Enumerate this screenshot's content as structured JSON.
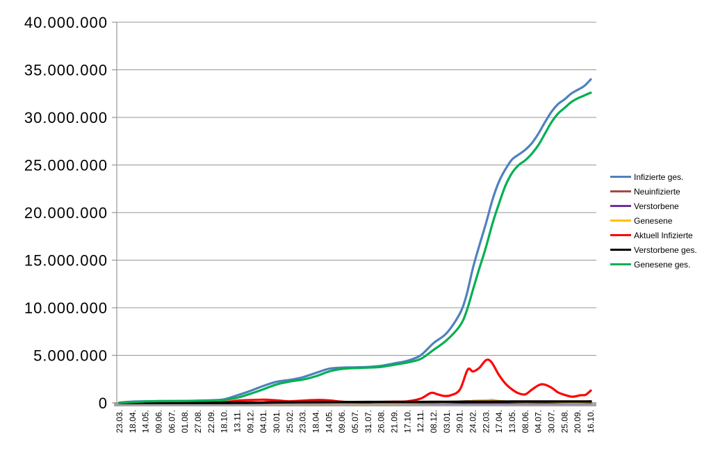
{
  "chart_data": {
    "type": "line",
    "title": "",
    "legend_position": "right",
    "grid": true,
    "values_unit": "millions",
    "y_axis": {
      "min": 0,
      "max": 40000000,
      "step": 5000000,
      "tick_labels_top_to_bottom": [
        "40.000.000",
        "35.000.000",
        "30.000.000",
        "25.000.000",
        "20.000.000",
        "15.000.000",
        "10.000.000",
        "5.000.000",
        "0"
      ]
    },
    "x_axis": {
      "label_rotation_degrees": -90,
      "categories": [
        "23.03.",
        "18.04.",
        "14.05.",
        "09.06.",
        "06.07.",
        "01.08.",
        "27.08.",
        "22.09.",
        "18.10.",
        "13.11.",
        "09.12.",
        "04.01.",
        "30.01.",
        "25.02.",
        "23.03.",
        "18.04.",
        "14.05.",
        "09.06.",
        "05.07.",
        "31.07.",
        "26.08.",
        "21.09.",
        "17.10.",
        "12.11.",
        "08.12.",
        "03.01.",
        "29.01.",
        "24.02.",
        "22.03.",
        "17.04.",
        "13.05.",
        "08.06.",
        "04.07.",
        "30.07.",
        "25.08.",
        "20.09.",
        "16.10."
      ]
    },
    "series": [
      {
        "name": "Infizierte ges.",
        "color": "#4F81BD",
        "points_index_value_millions": [
          [
            0,
            0.03
          ],
          [
            1,
            0.14
          ],
          [
            2,
            0.17
          ],
          [
            3,
            0.19
          ],
          [
            4,
            0.2
          ],
          [
            5,
            0.21
          ],
          [
            6,
            0.24
          ],
          [
            7,
            0.28
          ],
          [
            8,
            0.38
          ],
          [
            9,
            0.8
          ],
          [
            10,
            1.27
          ],
          [
            11,
            1.79
          ],
          [
            12,
            2.22
          ],
          [
            13,
            2.42
          ],
          [
            14,
            2.7
          ],
          [
            15,
            3.15
          ],
          [
            16,
            3.59
          ],
          [
            17,
            3.71
          ],
          [
            18,
            3.74
          ],
          [
            19,
            3.78
          ],
          [
            20,
            3.9
          ],
          [
            21,
            4.15
          ],
          [
            22,
            4.43
          ],
          [
            23,
            5.0
          ],
          [
            24,
            6.3
          ],
          [
            25,
            7.35
          ],
          [
            26,
            9.4
          ],
          [
            26.5,
            11.3
          ],
          [
            27,
            14.2
          ],
          [
            27.5,
            16.6
          ],
          [
            28,
            18.9
          ],
          [
            28.5,
            21.4
          ],
          [
            29,
            23.3
          ],
          [
            29.5,
            24.6
          ],
          [
            30,
            25.6
          ],
          [
            30.5,
            26.1
          ],
          [
            31,
            26.6
          ],
          [
            31.5,
            27.3
          ],
          [
            32,
            28.3
          ],
          [
            32.5,
            29.5
          ],
          [
            33,
            30.6
          ],
          [
            33.5,
            31.4
          ],
          [
            34,
            31.9
          ],
          [
            34.5,
            32.5
          ],
          [
            35,
            32.9
          ],
          [
            35.5,
            33.3
          ],
          [
            36,
            34.0
          ]
        ]
      },
      {
        "name": "Neuinfizierte",
        "color": "#9E4B45",
        "points_index_value_millions": [
          [
            0,
            0.004
          ],
          [
            1,
            0.002
          ],
          [
            2,
            0.001
          ],
          [
            3,
            0.0005
          ],
          [
            7,
            0.002
          ],
          [
            9,
            0.019
          ],
          [
            10,
            0.022
          ],
          [
            11,
            0.018
          ],
          [
            12,
            0.012
          ],
          [
            13,
            0.009
          ],
          [
            14,
            0.016
          ],
          [
            15,
            0.02
          ],
          [
            16,
            0.012
          ],
          [
            17,
            0.005
          ],
          [
            18,
            0.001
          ],
          [
            19,
            0.002
          ],
          [
            20,
            0.008
          ],
          [
            21,
            0.01
          ],
          [
            22,
            0.015
          ],
          [
            23,
            0.04
          ],
          [
            24,
            0.045
          ],
          [
            25,
            0.04
          ],
          [
            26,
            0.13
          ],
          [
            27,
            0.2
          ],
          [
            28,
            0.25
          ],
          [
            28.5,
            0.29
          ],
          [
            29,
            0.18
          ],
          [
            30,
            0.09
          ],
          [
            31,
            0.07
          ],
          [
            32,
            0.11
          ],
          [
            32.5,
            0.12
          ],
          [
            33,
            0.09
          ],
          [
            34,
            0.04
          ],
          [
            35,
            0.045
          ],
          [
            36,
            0.095
          ]
        ]
      },
      {
        "name": "Verstorbene",
        "color": "#7030A0",
        "points_index_value_millions": [
          [
            0,
            0.0002
          ],
          [
            10,
            0.0008
          ],
          [
            12,
            0.0009
          ],
          [
            14,
            0.0003
          ],
          [
            22,
            0.0002
          ],
          [
            24,
            0.0004
          ],
          [
            28,
            0.0003
          ],
          [
            36,
            0.0002
          ]
        ]
      },
      {
        "name": "Genesene",
        "color": "#FFC000",
        "points_index_value_millions": [
          [
            0,
            0.002
          ],
          [
            1,
            0.004
          ],
          [
            9,
            0.015
          ],
          [
            10,
            0.02
          ],
          [
            11,
            0.02
          ],
          [
            12,
            0.014
          ],
          [
            14,
            0.015
          ],
          [
            15,
            0.018
          ],
          [
            16,
            0.015
          ],
          [
            17,
            0.007
          ],
          [
            18,
            0.002
          ],
          [
            20,
            0.006
          ],
          [
            22,
            0.012
          ],
          [
            23,
            0.03
          ],
          [
            24,
            0.045
          ],
          [
            25,
            0.042
          ],
          [
            26,
            0.1
          ],
          [
            27,
            0.18
          ],
          [
            28,
            0.23
          ],
          [
            28.5,
            0.27
          ],
          [
            29,
            0.2
          ],
          [
            30,
            0.11
          ],
          [
            31,
            0.075
          ],
          [
            32,
            0.1
          ],
          [
            33,
            0.095
          ],
          [
            34,
            0.05
          ],
          [
            35,
            0.045
          ],
          [
            36,
            0.08
          ]
        ]
      },
      {
        "name": "Aktuell Infizierte",
        "color": "#FF0000",
        "points_index_value_millions": [
          [
            0,
            0.025
          ],
          [
            0.5,
            0.06
          ],
          [
            1,
            0.05
          ],
          [
            2,
            0.02
          ],
          [
            3,
            0.01
          ],
          [
            4,
            0.008
          ],
          [
            5,
            0.01
          ],
          [
            6,
            0.018
          ],
          [
            7,
            0.03
          ],
          [
            8,
            0.07
          ],
          [
            9,
            0.24
          ],
          [
            10,
            0.3
          ],
          [
            11,
            0.34
          ],
          [
            12,
            0.27
          ],
          [
            13,
            0.17
          ],
          [
            14,
            0.24
          ],
          [
            15,
            0.31
          ],
          [
            16,
            0.26
          ],
          [
            17,
            0.13
          ],
          [
            18,
            0.07
          ],
          [
            19,
            0.05
          ],
          [
            20,
            0.1
          ],
          [
            21,
            0.13
          ],
          [
            22,
            0.17
          ],
          [
            23,
            0.45
          ],
          [
            23.8,
            1.05
          ],
          [
            24.3,
            0.9
          ],
          [
            24.8,
            0.73
          ],
          [
            25.3,
            0.8
          ],
          [
            26,
            1.4
          ],
          [
            26.6,
            3.5
          ],
          [
            27,
            3.3
          ],
          [
            27.5,
            3.7
          ],
          [
            28,
            4.5
          ],
          [
            28.4,
            4.3
          ],
          [
            29,
            2.9
          ],
          [
            29.5,
            2.0
          ],
          [
            30,
            1.4
          ],
          [
            30.5,
            1.0
          ],
          [
            31,
            0.9
          ],
          [
            31.5,
            1.4
          ],
          [
            32,
            1.85
          ],
          [
            32.4,
            1.95
          ],
          [
            33,
            1.6
          ],
          [
            33.5,
            1.1
          ],
          [
            34,
            0.85
          ],
          [
            34.6,
            0.65
          ],
          [
            35.2,
            0.8
          ],
          [
            35.6,
            0.85
          ],
          [
            36,
            1.3
          ]
        ]
      },
      {
        "name": "Verstorbene ges.",
        "color": "#000000",
        "points_index_value_millions": [
          [
            0,
            0.0
          ],
          [
            2,
            0.008
          ],
          [
            4,
            0.009
          ],
          [
            8,
            0.01
          ],
          [
            9,
            0.013
          ],
          [
            10,
            0.021
          ],
          [
            11,
            0.035
          ],
          [
            12,
            0.056
          ],
          [
            13,
            0.069
          ],
          [
            14,
            0.075
          ],
          [
            15,
            0.08
          ],
          [
            16,
            0.086
          ],
          [
            17,
            0.089
          ],
          [
            18,
            0.091
          ],
          [
            19,
            0.092
          ],
          [
            20,
            0.092
          ],
          [
            21,
            0.093
          ],
          [
            22,
            0.095
          ],
          [
            23,
            0.098
          ],
          [
            24,
            0.104
          ],
          [
            25,
            0.112
          ],
          [
            26,
            0.118
          ],
          [
            27,
            0.122
          ],
          [
            28,
            0.127
          ],
          [
            29,
            0.132
          ],
          [
            30,
            0.136
          ],
          [
            31,
            0.139
          ],
          [
            32,
            0.141
          ],
          [
            33,
            0.143
          ],
          [
            34,
            0.145
          ],
          [
            35,
            0.147
          ],
          [
            36,
            0.15
          ]
        ]
      },
      {
        "name": "Genesene ges.",
        "color": "#00B050",
        "points_index_value_millions": [
          [
            0,
            0.01
          ],
          [
            1,
            0.08
          ],
          [
            2,
            0.15
          ],
          [
            3,
            0.18
          ],
          [
            4,
            0.19
          ],
          [
            5,
            0.2
          ],
          [
            6,
            0.22
          ],
          [
            7,
            0.25
          ],
          [
            8,
            0.31
          ],
          [
            9,
            0.55
          ],
          [
            10,
            0.96
          ],
          [
            11,
            1.44
          ],
          [
            12,
            1.94
          ],
          [
            13,
            2.24
          ],
          [
            14,
            2.45
          ],
          [
            15,
            2.8
          ],
          [
            16,
            3.3
          ],
          [
            17,
            3.57
          ],
          [
            18,
            3.66
          ],
          [
            19,
            3.71
          ],
          [
            20,
            3.79
          ],
          [
            21,
            4.01
          ],
          [
            22,
            4.25
          ],
          [
            23,
            4.62
          ],
          [
            24,
            5.58
          ],
          [
            25,
            6.6
          ],
          [
            26,
            8.1
          ],
          [
            26.5,
            9.6
          ],
          [
            27,
            11.9
          ],
          [
            27.5,
            14.2
          ],
          [
            28,
            16.4
          ],
          [
            28.5,
            18.9
          ],
          [
            29,
            21.0
          ],
          [
            29.5,
            22.9
          ],
          [
            30,
            24.2
          ],
          [
            30.5,
            25.0
          ],
          [
            31,
            25.5
          ],
          [
            31.5,
            26.2
          ],
          [
            32,
            27.1
          ],
          [
            32.5,
            28.3
          ],
          [
            33,
            29.5
          ],
          [
            33.5,
            30.4
          ],
          [
            34,
            31.0
          ],
          [
            34.5,
            31.6
          ],
          [
            35,
            32.0
          ],
          [
            35.5,
            32.3
          ],
          [
            36,
            32.6
          ]
        ]
      }
    ]
  },
  "colors": {
    "background": "#FFFFFF",
    "gridline": "#969696",
    "axis_line": "#969696",
    "x_axis_bar": "#A6A6A6",
    "text": "#000000"
  }
}
